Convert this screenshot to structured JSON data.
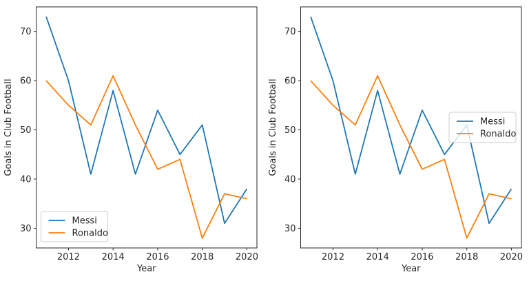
{
  "figure": {
    "background": "#ffffff",
    "text_color": "#262626",
    "spine_color": "#262626",
    "legend_border_color": "#cccccc",
    "legend_face_color": "rgba(255,255,255,0.8)"
  },
  "chart_data": [
    {
      "type": "line",
      "title": "",
      "xlabel": "Year",
      "ylabel": "Goals in Club Football",
      "x": [
        2011,
        2012,
        2013,
        2014,
        2015,
        2016,
        2017,
        2018,
        2019,
        2020
      ],
      "series": [
        {
          "name": "Messi",
          "color": "#1f77b4",
          "values": [
            73,
            60,
            41,
            58,
            41,
            54,
            45,
            51,
            31,
            38
          ]
        },
        {
          "name": "Ronaldo",
          "color": "#ff7f0e",
          "values": [
            60,
            55,
            51,
            61,
            51,
            42,
            44,
            28,
            37,
            36
          ]
        }
      ],
      "xticks": [
        2012,
        2014,
        2016,
        2018,
        2020
      ],
      "yticks": [
        30,
        40,
        50,
        60,
        70
      ],
      "xlim": [
        2010.55,
        2020.45
      ],
      "ylim": [
        26,
        75
      ],
      "grid": false,
      "legend": {
        "position": "lower-left",
        "labels": [
          "Messi",
          "Ronaldo"
        ]
      }
    },
    {
      "type": "line",
      "title": "",
      "xlabel": "Year",
      "ylabel": "Goals in Club Football",
      "x": [
        2011,
        2012,
        2013,
        2014,
        2015,
        2016,
        2017,
        2018,
        2019,
        2020
      ],
      "series": [
        {
          "name": "Messi",
          "color": "#1f77b4",
          "values": [
            73,
            60,
            41,
            58,
            41,
            54,
            45,
            51,
            31,
            38
          ]
        },
        {
          "name": "Ronaldo",
          "color": "#ff7f0e",
          "values": [
            60,
            55,
            51,
            61,
            51,
            42,
            44,
            28,
            37,
            36
          ]
        }
      ],
      "xticks": [
        2012,
        2014,
        2016,
        2018,
        2020
      ],
      "yticks": [
        30,
        40,
        50,
        60,
        70
      ],
      "xlim": [
        2010.55,
        2020.45
      ],
      "ylim": [
        26,
        75
      ],
      "grid": false,
      "legend": {
        "position": "center-right",
        "labels": [
          "Messi",
          "Ronaldo"
        ]
      }
    }
  ]
}
